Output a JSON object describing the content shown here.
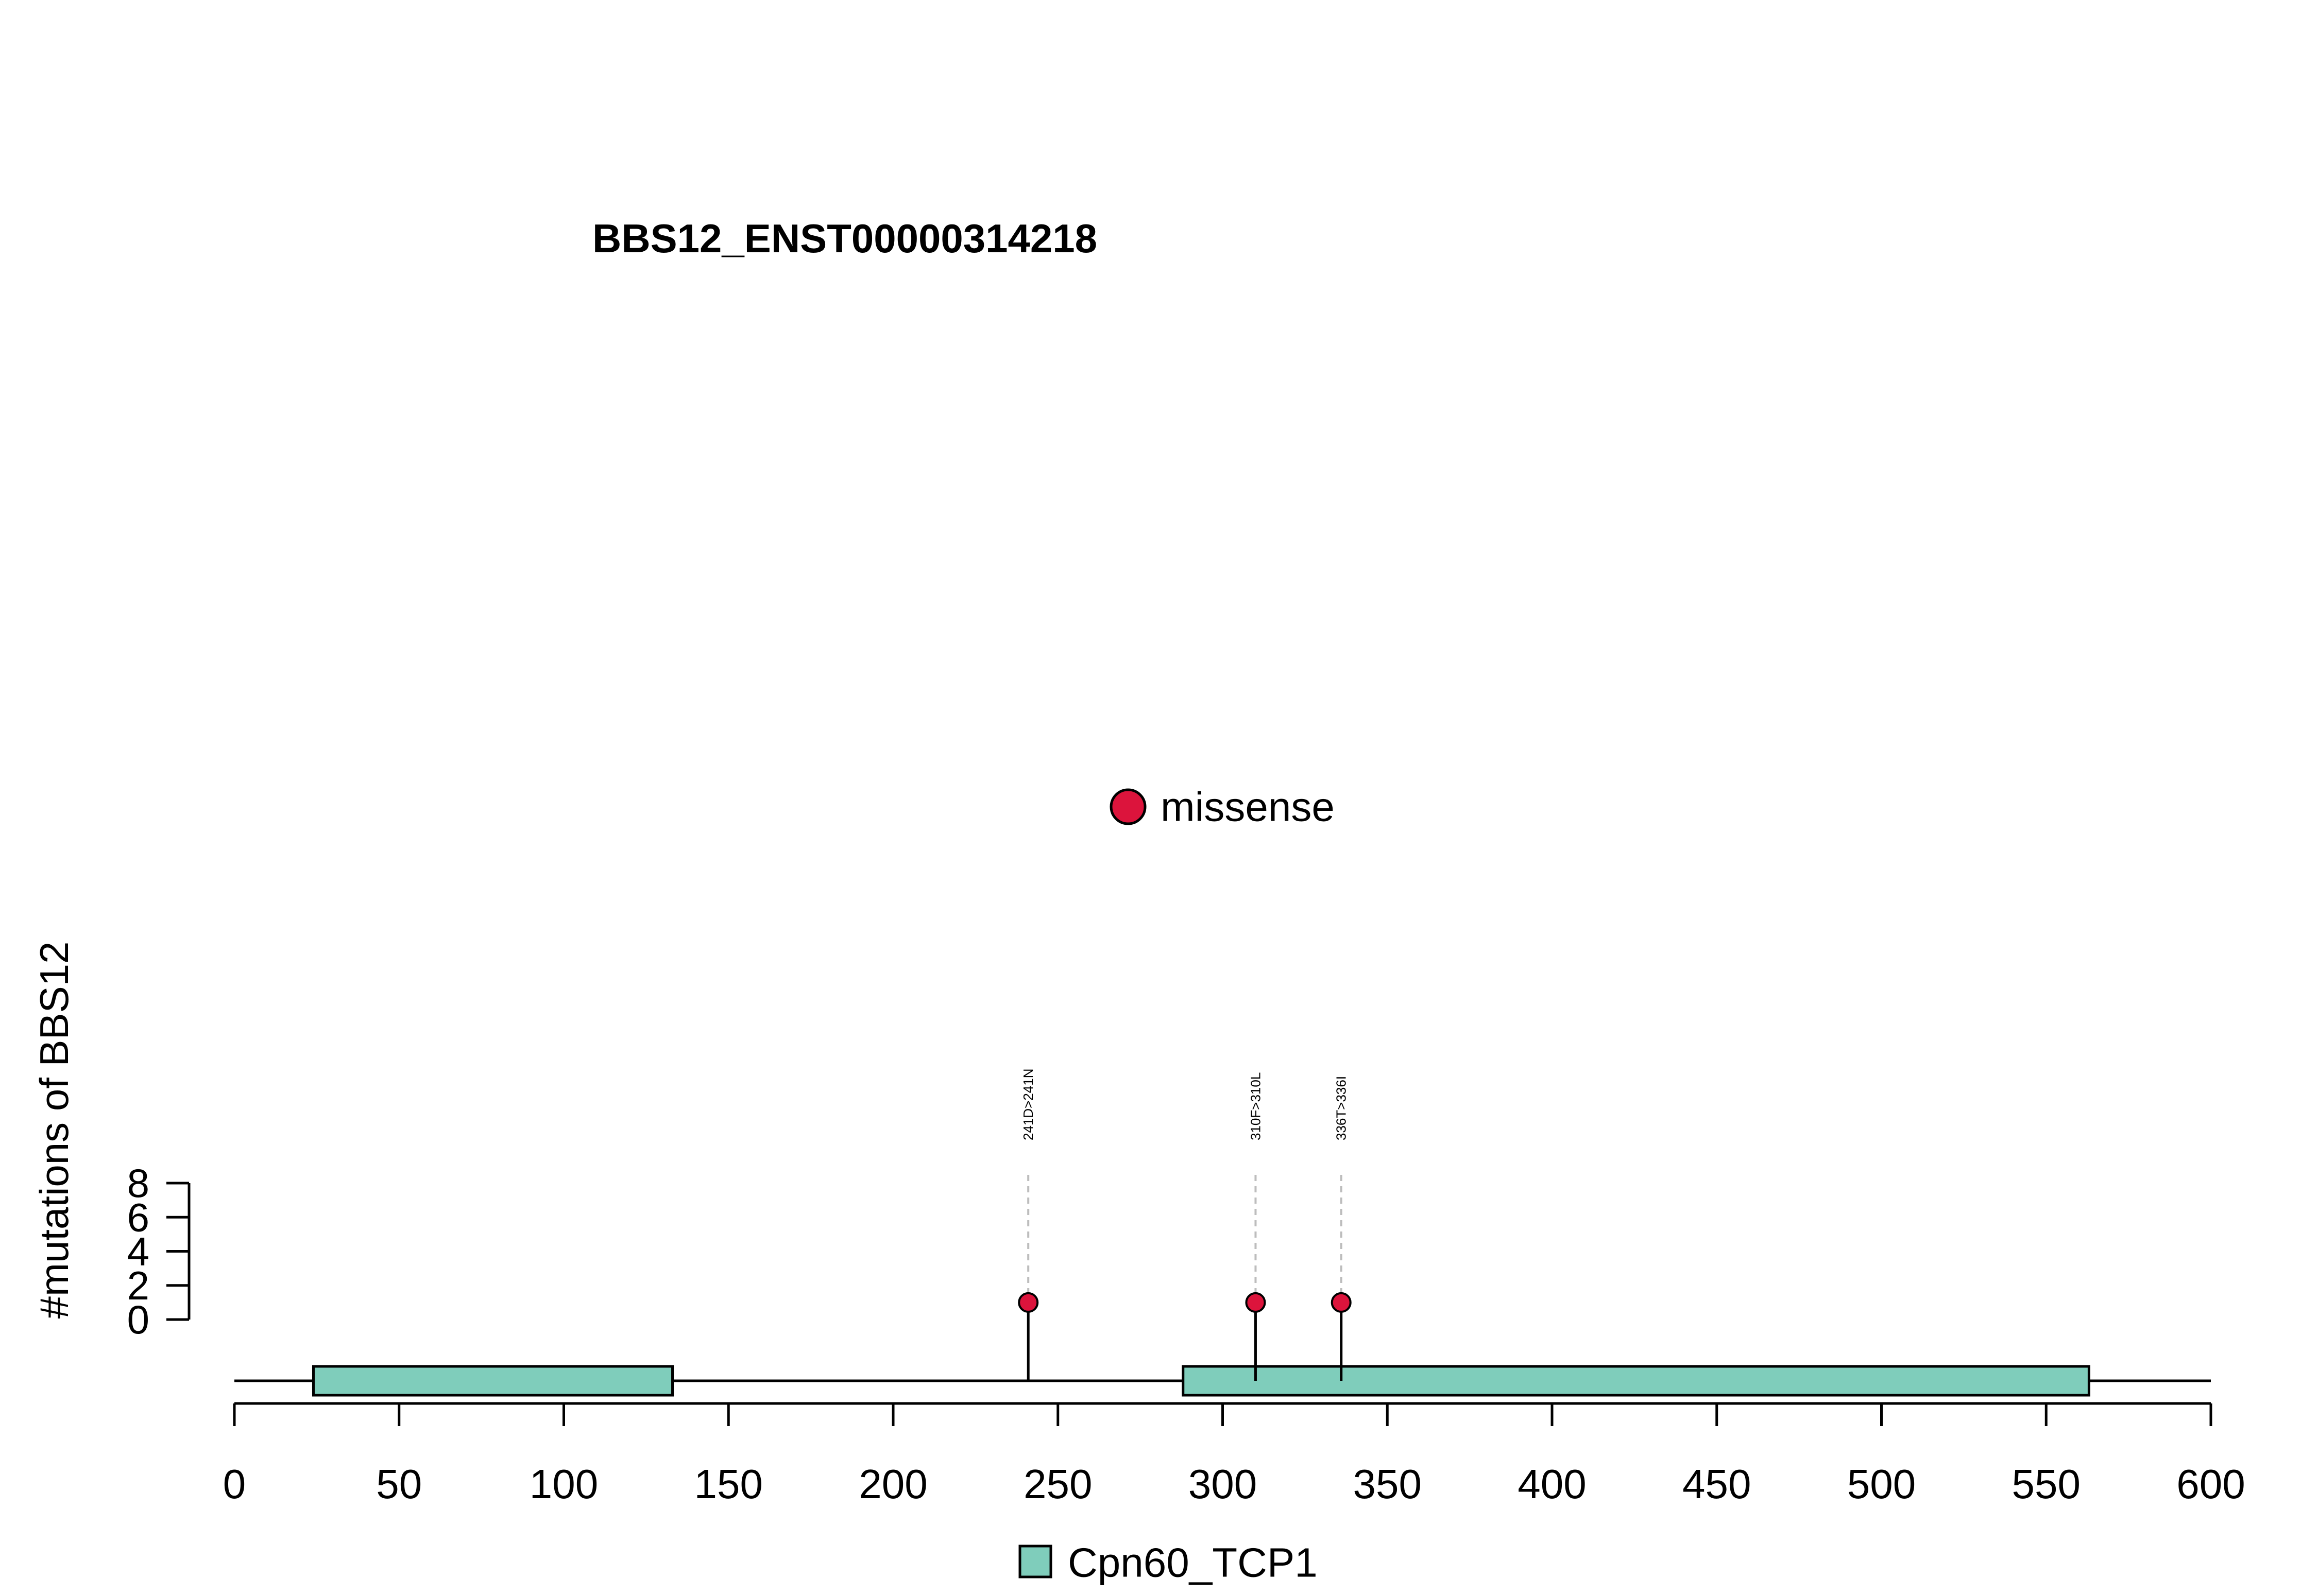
{
  "chart_data": {
    "type": "lollipop",
    "title": "BBS12_ENST00000314218",
    "xlabel": "",
    "ylabel": "#mutations of BBS12",
    "xlim": [
      0,
      600
    ],
    "ylim": [
      0,
      8
    ],
    "x_ticks": [
      0,
      50,
      100,
      150,
      200,
      250,
      300,
      350,
      400,
      450,
      500,
      550,
      600
    ],
    "y_ticks": [
      0,
      2,
      4,
      6,
      8
    ],
    "protein_length": 600,
    "domains": [
      {
        "name": "Cpn60_TCP1",
        "start": 24,
        "end": 133,
        "color": "#7fcdbb"
      },
      {
        "name": "Cpn60_TCP1",
        "start": 288,
        "end": 563,
        "color": "#7fcdbb"
      }
    ],
    "mutations": [
      {
        "position": 241,
        "count": 1,
        "label": "241D>241N",
        "type": "missense"
      },
      {
        "position": 310,
        "count": 1,
        "label": "310F>310L",
        "type": "missense"
      },
      {
        "position": 336,
        "count": 1,
        "label": "336T>336I",
        "type": "missense"
      }
    ],
    "mutation_legend": [
      {
        "label": "missense",
        "color": "#dc143c"
      }
    ],
    "domain_legend": [
      {
        "label": "Cpn60_TCP1",
        "color": "#7fcdbb"
      }
    ],
    "grid": false
  }
}
